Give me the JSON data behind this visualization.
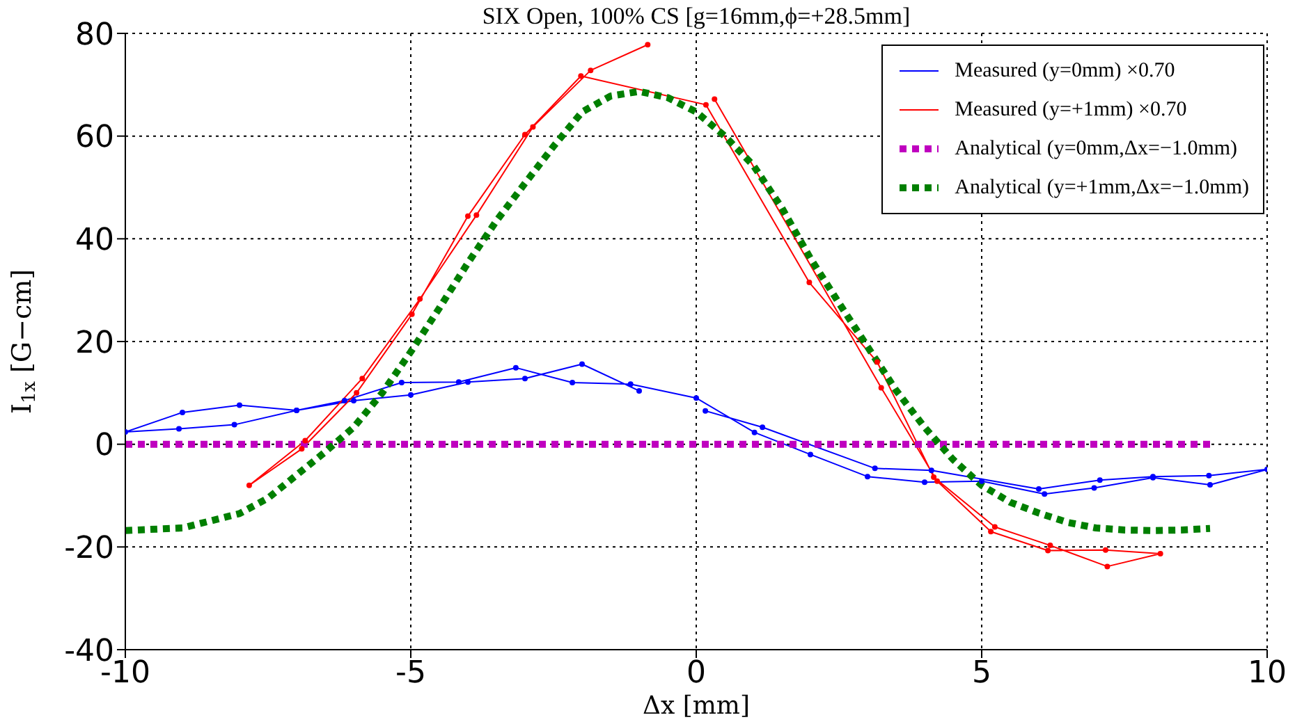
{
  "chart_data": {
    "type": "line",
    "title": "SIX Open, 100% CS [g=16mm,ϕ=+28.5mm]",
    "xlabel": "Δx [mm]",
    "ylabel": "I$_{1x}$ [G−cm]",
    "xlim": [
      -10,
      10
    ],
    "xticks": [
      -10,
      -5,
      0,
      5,
      10
    ],
    "ylim": [
      -40,
      80
    ],
    "yticks": [
      -40,
      -20,
      0,
      20,
      40,
      60,
      80
    ],
    "grid": true,
    "legend": "top right",
    "series": [
      {
        "name": "Measured (y=0mm) ×0.70",
        "color": "#0000ff",
        "marker": "circle",
        "line_style": "solid",
        "x": [
          -1.0,
          -2.0,
          -3.0,
          -4.0,
          -5.0,
          -6.0,
          -7.0,
          -8.09,
          -9.06,
          -10.0,
          -9.0,
          -8.0,
          -7.0,
          -6.16,
          -5.16,
          -4.16,
          -3.16,
          -2.17,
          -1.15,
          0.0,
          1.02,
          2.0,
          3.0,
          4.0,
          5.0,
          6.1,
          6.97,
          8.0,
          9.0,
          10.0,
          8.98,
          8.0,
          7.07,
          6.0,
          4.12,
          3.13,
          1.16,
          0.16
        ],
        "values": [
          10.4,
          15.6,
          12.8,
          12.1,
          9.6,
          8.5,
          6.6,
          3.8,
          3.0,
          2.4,
          6.2,
          7.6,
          6.6,
          8.5,
          12.0,
          12.1,
          14.9,
          12.0,
          11.7,
          9.0,
          2.3,
          -2.0,
          -6.3,
          -7.4,
          -7.2,
          -9.7,
          -8.5,
          -6.5,
          -7.9,
          -4.9,
          -6.1,
          -6.3,
          -7.0,
          -8.7,
          -5.1,
          -4.7,
          3.3,
          6.5
        ]
      },
      {
        "name": "Measured (y=+1mm) ×0.70",
        "color": "#ff0000",
        "marker": "circle",
        "line_style": "solid",
        "x": [
          -0.85,
          -1.85,
          -2.86,
          -3.85,
          -4.84,
          -5.85,
          -6.85,
          -7.83,
          -6.91,
          -5.95,
          -4.98,
          -4.0,
          -3.0,
          -2.02,
          0.17,
          1.98,
          3.17,
          4.16,
          5.23,
          6.2,
          7.2,
          8.13,
          7.17,
          6.16,
          5.16,
          4.22,
          3.24,
          0.32
        ],
        "values": [
          77.8,
          72.8,
          61.8,
          44.6,
          28.3,
          12.8,
          0.7,
          -8.0,
          -0.9,
          10.0,
          25.3,
          44.4,
          60.3,
          71.7,
          66.1,
          31.5,
          16.0,
          -6.4,
          -16.1,
          -19.7,
          -23.8,
          -21.3,
          -20.6,
          -20.7,
          -17.0,
          -7.2,
          11.0,
          67.2
        ]
      },
      {
        "name": "Analytical (y=0mm,Δx=−1.0mm)",
        "color": "#bf00bf",
        "marker": "none",
        "line_style": "dotted",
        "x": [
          -10,
          -9,
          -8,
          -7,
          -6,
          -5,
          -4,
          -3,
          -2,
          -1,
          0,
          1,
          2,
          3,
          4,
          5,
          6,
          7,
          8,
          9
        ],
        "values": [
          0,
          0,
          0,
          0,
          0,
          0,
          0,
          0,
          0,
          0,
          0,
          0,
          0,
          0,
          0,
          0,
          0,
          0,
          0,
          0
        ]
      },
      {
        "name": "Analytical (y=+1mm,Δx=−1.0mm)",
        "color": "#007f00",
        "marker": "none",
        "line_style": "dotted",
        "x": [
          -10,
          -9,
          -8,
          -7.5,
          -7,
          -6.5,
          -6,
          -5.5,
          -5,
          -4.5,
          -4,
          -3.5,
          -3,
          -2.5,
          -2,
          -1.5,
          -1,
          -0.5,
          0,
          0.5,
          1,
          1.5,
          2,
          2.5,
          3,
          3.5,
          4,
          4.5,
          5,
          5.5,
          6,
          6.5,
          7,
          7.5,
          8,
          8.5,
          9
        ],
        "values": [
          -16.8,
          -16.3,
          -13.5,
          -10.5,
          -6,
          -1.5,
          3.3,
          10,
          18,
          26.5,
          35.3,
          43.5,
          50.8,
          58,
          64.7,
          67.8,
          68.7,
          67.5,
          64.7,
          60,
          54.3,
          46,
          36.2,
          27.5,
          19,
          10.5,
          3.3,
          -3,
          -8,
          -11.3,
          -13.4,
          -15.2,
          -16.3,
          -16.7,
          -16.8,
          -16.7,
          -16.4
        ]
      }
    ]
  }
}
